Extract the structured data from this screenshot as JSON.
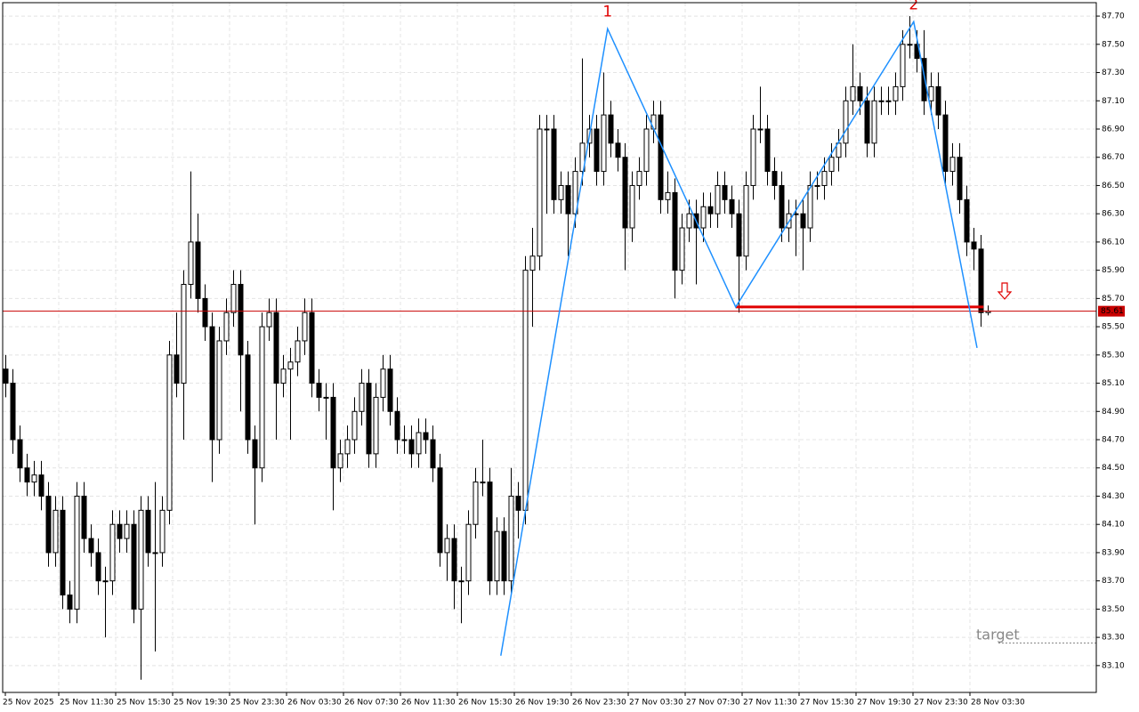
{
  "chart_data": {
    "type": "candlestick",
    "xlim": [
      -0.375,
      153.25
    ],
    "ylim": [
      82.91,
      87.795
    ],
    "grid": true,
    "bull_color": "#ffffff",
    "bear_color": "#000000",
    "open": [
      85.2,
      85.1,
      84.7,
      84.5,
      84.4,
      84.45,
      84.3,
      83.9,
      84.2,
      83.6,
      83.5,
      84.3,
      84.0,
      83.9,
      83.7,
      83.7,
      84.1,
      84.0,
      84.1,
      83.5,
      84.2,
      83.9,
      83.9,
      84.2,
      85.3,
      85.1,
      85.8,
      86.1,
      85.7,
      85.5,
      84.7,
      85.4,
      85.6,
      85.8,
      85.3,
      84.7,
      84.5,
      85.5,
      85.6,
      85.1,
      85.2,
      85.25,
      85.4,
      85.6,
      85.1,
      85.0,
      85.0,
      84.5,
      84.6,
      84.7,
      84.9,
      85.1,
      84.6,
      85.0,
      85.2,
      84.9,
      84.7,
      84.7,
      84.6,
      84.75,
      84.7,
      84.5,
      83.9,
      84.0,
      83.7,
      83.7,
      84.1,
      84.4,
      84.4,
      83.7,
      84.05,
      83.7,
      84.3,
      84.2,
      85.9,
      86.0,
      86.9,
      86.9,
      86.4,
      86.5,
      86.3,
      86.6,
      86.8,
      86.9,
      86.6,
      87.0,
      86.8,
      86.7,
      86.2,
      86.5,
      86.6,
      86.9,
      87.0,
      86.4,
      86.45,
      85.9,
      86.2,
      86.3,
      86.2,
      86.35,
      86.3,
      86.5,
      86.4,
      86.3,
      86.0,
      86.5,
      86.9,
      86.9,
      86.6,
      86.5,
      86.2,
      86.3,
      86.3,
      86.2,
      86.5,
      86.5,
      86.6,
      86.7,
      86.8,
      87.1,
      87.2,
      87.1,
      86.8,
      87.1,
      87.1,
      87.1,
      87.2,
      87.5,
      87.5,
      87.4,
      87.1,
      87.2,
      87.0,
      86.6,
      86.7,
      86.4,
      86.1,
      86.05,
      85.6
    ],
    "high": [
      85.3,
      85.2,
      84.8,
      84.6,
      84.55,
      84.55,
      84.4,
      84.3,
      84.3,
      83.7,
      84.4,
      84.4,
      84.1,
      84.0,
      83.8,
      84.2,
      84.2,
      84.2,
      84.2,
      84.3,
      84.3,
      84.4,
      84.3,
      85.4,
      85.6,
      85.9,
      86.6,
      86.3,
      85.8,
      85.6,
      85.5,
      85.7,
      85.9,
      85.9,
      85.4,
      84.8,
      85.6,
      85.7,
      85.7,
      85.3,
      85.35,
      85.5,
      85.7,
      85.7,
      85.2,
      85.1,
      85.1,
      84.7,
      84.8,
      85.0,
      85.2,
      85.2,
      85.1,
      85.3,
      85.3,
      85.0,
      84.8,
      84.8,
      84.85,
      84.85,
      84.8,
      84.6,
      84.1,
      84.1,
      83.8,
      84.2,
      84.5,
      84.7,
      84.5,
      84.15,
      84.15,
      84.5,
      84.4,
      86.0,
      86.2,
      87.0,
      87.0,
      87.0,
      86.6,
      86.6,
      86.7,
      87.4,
      87.0,
      87.0,
      87.3,
      87.1,
      86.9,
      86.8,
      86.6,
      86.7,
      87.0,
      87.1,
      87.1,
      86.6,
      86.55,
      86.3,
      86.4,
      86.4,
      86.45,
      86.45,
      86.6,
      86.6,
      86.5,
      86.4,
      86.6,
      87.0,
      87.2,
      87.0,
      86.7,
      86.6,
      86.4,
      86.4,
      86.4,
      86.6,
      86.6,
      86.7,
      86.8,
      86.9,
      87.2,
      87.5,
      87.3,
      87.2,
      87.2,
      87.2,
      87.2,
      87.3,
      87.6,
      87.7,
      87.6,
      87.6,
      87.3,
      87.3,
      87.1,
      86.8,
      86.8,
      86.5,
      86.2,
      86.15,
      85.65
    ],
    "low": [
      85.0,
      84.6,
      84.4,
      84.3,
      84.3,
      84.2,
      83.8,
      83.8,
      83.5,
      83.4,
      83.4,
      83.9,
      83.8,
      83.6,
      83.3,
      83.6,
      83.9,
      83.9,
      83.4,
      83.0,
      83.8,
      83.2,
      83.8,
      84.1,
      85.0,
      84.7,
      85.7,
      85.6,
      85.4,
      84.4,
      84.6,
      85.3,
      85.5,
      84.9,
      84.6,
      84.1,
      84.4,
      85.4,
      84.7,
      85.0,
      84.7,
      85.15,
      85.3,
      85.0,
      84.9,
      84.7,
      84.2,
      84.4,
      84.5,
      84.6,
      84.8,
      84.5,
      84.5,
      84.9,
      84.8,
      84.6,
      84.6,
      84.5,
      84.5,
      84.6,
      84.4,
      83.8,
      83.7,
      83.5,
      83.4,
      83.6,
      84.0,
      84.3,
      83.6,
      83.6,
      83.6,
      83.6,
      84.0,
      84.1,
      85.5,
      85.9,
      86.3,
      86.3,
      86.3,
      86.0,
      86.2,
      86.5,
      86.7,
      86.5,
      86.5,
      86.7,
      86.6,
      85.9,
      86.1,
      86.4,
      86.5,
      86.8,
      86.3,
      86.3,
      85.7,
      85.8,
      86.1,
      85.8,
      86.1,
      86.2,
      86.2,
      86.3,
      86.2,
      85.6,
      85.9,
      86.4,
      86.8,
      86.5,
      86.4,
      86.1,
      86.1,
      86.0,
      85.9,
      86.1,
      86.4,
      86.4,
      86.5,
      86.6,
      86.7,
      87.0,
      87.0,
      86.7,
      86.7,
      87.0,
      87.0,
      87.0,
      87.1,
      87.4,
      87.3,
      87.0,
      87.0,
      86.9,
      86.5,
      86.5,
      86.3,
      86.0,
      85.9,
      85.5,
      85.58
    ],
    "close": [
      85.1,
      84.7,
      84.5,
      84.4,
      84.45,
      84.3,
      83.9,
      84.2,
      83.6,
      83.5,
      84.3,
      84.0,
      83.9,
      83.7,
      83.7,
      84.1,
      84.0,
      84.1,
      83.5,
      84.2,
      83.9,
      83.9,
      84.2,
      85.3,
      85.1,
      85.8,
      86.1,
      85.7,
      85.5,
      84.7,
      85.4,
      85.6,
      85.8,
      85.3,
      84.7,
      84.5,
      85.5,
      85.6,
      85.1,
      85.2,
      85.25,
      85.4,
      85.6,
      85.1,
      85.0,
      85.0,
      84.5,
      84.6,
      84.7,
      84.9,
      85.1,
      84.6,
      85.0,
      85.2,
      84.9,
      84.7,
      84.7,
      84.6,
      84.75,
      84.7,
      84.5,
      83.9,
      84.0,
      83.7,
      83.7,
      84.1,
      84.4,
      84.4,
      83.7,
      84.05,
      83.7,
      84.3,
      84.2,
      85.9,
      86.0,
      86.9,
      86.9,
      86.4,
      86.5,
      86.3,
      86.6,
      86.8,
      86.9,
      86.6,
      87.0,
      86.8,
      86.7,
      86.2,
      86.5,
      86.6,
      86.9,
      87.0,
      86.4,
      86.45,
      85.9,
      86.2,
      86.3,
      86.2,
      86.35,
      86.3,
      86.5,
      86.4,
      86.3,
      86.0,
      86.5,
      86.9,
      86.9,
      86.6,
      86.5,
      86.2,
      86.3,
      86.3,
      86.2,
      86.5,
      86.5,
      86.6,
      86.7,
      86.8,
      87.1,
      87.2,
      87.1,
      86.8,
      87.1,
      87.1,
      87.1,
      87.2,
      87.5,
      87.5,
      87.4,
      87.1,
      87.2,
      87.0,
      86.6,
      86.7,
      86.4,
      86.1,
      86.05,
      85.6,
      85.61
    ],
    "zigzag": {
      "color": "#1e90ff",
      "x": [
        69.6,
        84.6,
        102.6,
        127.6,
        136.5
      ],
      "values": [
        83.17,
        87.61,
        85.64,
        87.66,
        85.35
      ]
    },
    "pattern_labels": [
      "1",
      "2"
    ],
    "neckline": {
      "color": "#e00000",
      "value": 85.64,
      "x": [
        102.6,
        137.4
      ]
    },
    "current_price": {
      "color": "#c80000",
      "value": 85.61
    },
    "target": {
      "text": "target",
      "value": 83.26
    },
    "yticks": [
      {
        "value": 83.1,
        "label": "83.10"
      },
      {
        "value": 83.3,
        "label": "83.30"
      },
      {
        "value": 83.5,
        "label": "83.50"
      },
      {
        "value": 83.7,
        "label": "83.70"
      },
      {
        "value": 83.9,
        "label": "83.90"
      },
      {
        "value": 84.1,
        "label": "84.10"
      },
      {
        "value": 84.3,
        "label": "84.30"
      },
      {
        "value": 84.5,
        "label": "84.50"
      },
      {
        "value": 84.7,
        "label": "84.70"
      },
      {
        "value": 84.9,
        "label": "84.90"
      },
      {
        "value": 85.1,
        "label": "85.10"
      },
      {
        "value": 85.3,
        "label": "85.30"
      },
      {
        "value": 85.5,
        "label": "85.50"
      },
      {
        "value": 85.7,
        "label": "85.70"
      },
      {
        "value": 85.9,
        "label": "85.90"
      },
      {
        "value": 86.1,
        "label": "86.10"
      },
      {
        "value": 86.3,
        "label": "86.30"
      },
      {
        "value": 86.5,
        "label": "86.50"
      },
      {
        "value": 86.7,
        "label": "86.70"
      },
      {
        "value": 86.9,
        "label": "86.90"
      },
      {
        "value": 87.1,
        "label": "87.10"
      },
      {
        "value": 87.3,
        "label": "87.30"
      },
      {
        "value": 87.5,
        "label": "87.50"
      },
      {
        "value": 87.7,
        "label": "87.70"
      }
    ],
    "xticks": [
      {
        "value": 0,
        "label": "25 Nov 2025"
      },
      {
        "value": 7.5,
        "label": "25 Nov 11:30"
      },
      {
        "value": 15.5,
        "label": "25 Nov 15:30"
      },
      {
        "value": 23.5,
        "label": "25 Nov 19:30"
      },
      {
        "value": 31.5,
        "label": "25 Nov 23:30"
      },
      {
        "value": 39.5,
        "label": "26 Nov 03:30"
      },
      {
        "value": 47.5,
        "label": "26 Nov 07:30"
      },
      {
        "value": 55.5,
        "label": "26 Nov 11:30"
      },
      {
        "value": 63.5,
        "label": "26 Nov 15:30"
      },
      {
        "value": 71.5,
        "label": "26 Nov 19:30"
      },
      {
        "value": 79.5,
        "label": "26 Nov 23:30"
      },
      {
        "value": 87.5,
        "label": "27 Nov 03:30"
      },
      {
        "value": 95.5,
        "label": "27 Nov 07:30"
      },
      {
        "value": 103.5,
        "label": "27 Nov 11:30"
      },
      {
        "value": 111.5,
        "label": "27 Nov 15:30"
      },
      {
        "value": 119.5,
        "label": "27 Nov 19:30"
      },
      {
        "value": 127.5,
        "label": "27 Nov 23:30"
      },
      {
        "value": 135.5,
        "label": "28 Nov 03:30"
      }
    ]
  }
}
